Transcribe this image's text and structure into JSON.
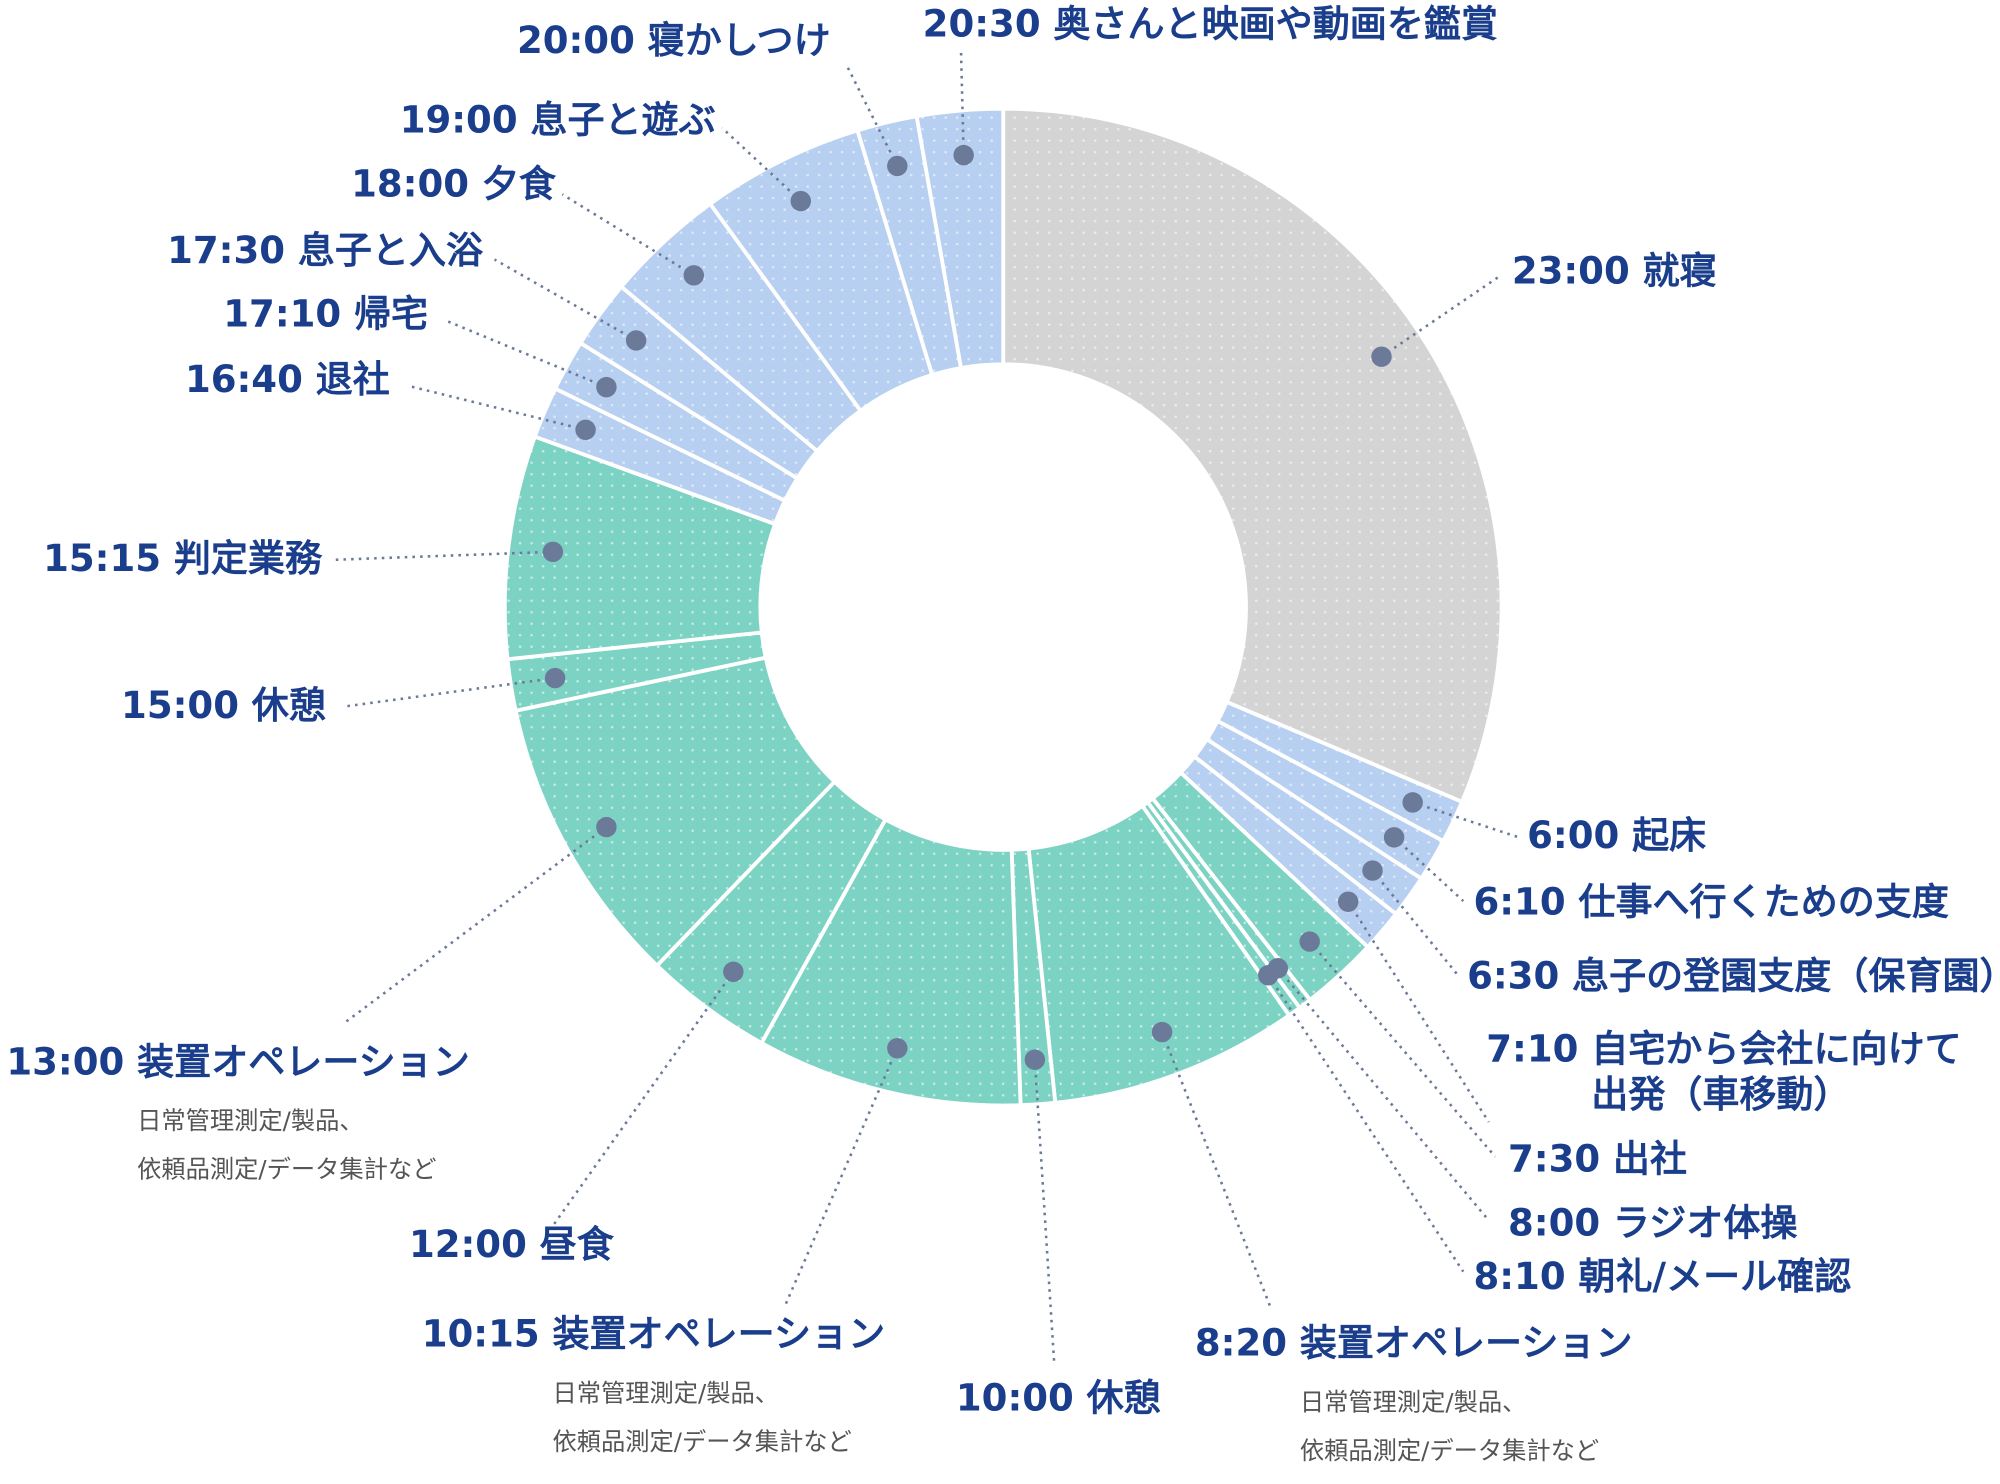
{
  "chart_data": {
    "type": "donut",
    "categories": [
      "23:00",
      "6:00",
      "6:10",
      "6:30",
      "7:10",
      "7:30",
      "8:00",
      "8:10",
      "8:20",
      "10:00",
      "10:15",
      "12:00",
      "13:00",
      "15:00",
      "15:15",
      "16:40",
      "17:10",
      "17:30",
      "18:00",
      "19:00",
      "20:00",
      "20:30"
    ],
    "labels": [
      [
        "就寝"
      ],
      [
        "起床"
      ],
      [
        "仕事へ行くための支度"
      ],
      [
        "息子の登園支度（保育園）"
      ],
      [
        "自宅から会社に向けて",
        "出発（車移動）"
      ],
      [
        "出社"
      ],
      [
        "ラジオ体操"
      ],
      [
        "朝礼/メール確認"
      ],
      [
        "装置オペレーション"
      ],
      [
        "休憩"
      ],
      [
        "装置オペレーション"
      ],
      [
        "昼食"
      ],
      [
        "装置オペレーション"
      ],
      [
        "休憩"
      ],
      [
        "判定業務"
      ],
      [
        "退社"
      ],
      [
        "帰宅"
      ],
      [
        "息子と入浴"
      ],
      [
        "夕食"
      ],
      [
        "息子と遊ぶ"
      ],
      [
        "寝かしつけ"
      ],
      [
        "奥さんと映画や動画を鑑賞"
      ]
    ],
    "descriptions": [
      null,
      null,
      null,
      null,
      null,
      null,
      null,
      null,
      [
        "日常管理測定/製品、",
        "依頼品測定/データ集計など"
      ],
      null,
      [
        "日常管理測定/製品、",
        "依頼品測定/データ集計など"
      ],
      null,
      [
        "日常管理測定/製品、",
        "依頼品測定/データ集計など"
      ],
      null,
      null,
      null,
      null,
      null,
      null,
      null,
      null,
      null
    ],
    "values": [
      113,
      5,
      5,
      5,
      5,
      9,
      1.5,
      1.5,
      29,
      4,
      31,
      15,
      34,
      6,
      26,
      6,
      6,
      8,
      14,
      19,
      7,
      10
    ],
    "colors": [
      "#d4d4d4",
      "#b7cff0",
      "#b7cff0",
      "#b7cff0",
      "#b7cff0",
      "#7dd3c3",
      "#7dd3c3",
      "#7dd3c3",
      "#7dd3c3",
      "#7dd3c3",
      "#7dd3c3",
      "#7dd3c3",
      "#7dd3c3",
      "#7dd3c3",
      "#7dd3c3",
      "#b7cff0",
      "#b7cff0",
      "#b7cff0",
      "#b7cff0",
      "#b7cff0",
      "#b7cff0",
      "#b7cff0"
    ]
  }
}
